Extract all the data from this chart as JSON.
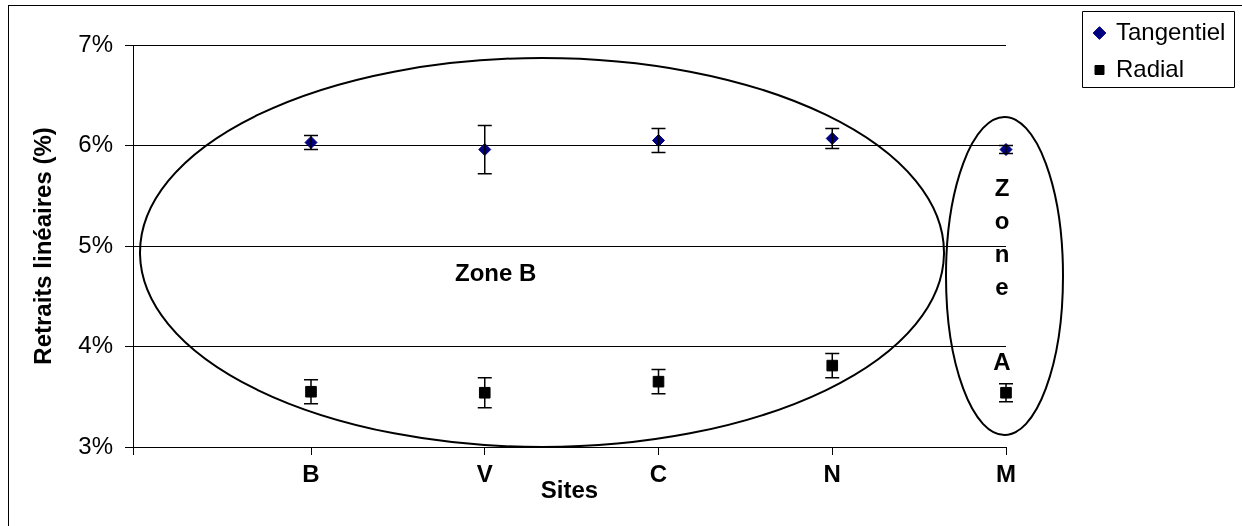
{
  "chart_data": {
    "type": "scatter",
    "xlabel": "Sites",
    "ylabel": "Retraits linéaires (%)",
    "categories": [
      "B",
      "V",
      "C",
      "N",
      "M"
    ],
    "ylim": [
      3,
      7
    ],
    "yticks": [
      {
        "value": 3,
        "label": "3%"
      },
      {
        "value": 4,
        "label": "4%"
      },
      {
        "value": 5,
        "label": "5%"
      },
      {
        "value": 6,
        "label": "6%"
      },
      {
        "value": 7,
        "label": "7%"
      }
    ],
    "series": [
      {
        "name": "Tangentiel",
        "color": "#000080",
        "marker": "diamond",
        "values": [
          6.03,
          5.96,
          6.05,
          6.07,
          5.96
        ],
        "errors": [
          0.07,
          0.24,
          0.12,
          0.1,
          0.04
        ]
      },
      {
        "name": "Radial",
        "color": "#000000",
        "marker": "square",
        "values": [
          3.55,
          3.54,
          3.65,
          3.81,
          3.54
        ],
        "errors": [
          0.12,
          0.15,
          0.12,
          0.12,
          0.09
        ]
      }
    ],
    "annotations": [
      "Zone B",
      "Zone A"
    ],
    "grid": "y",
    "legend": "top right"
  }
}
